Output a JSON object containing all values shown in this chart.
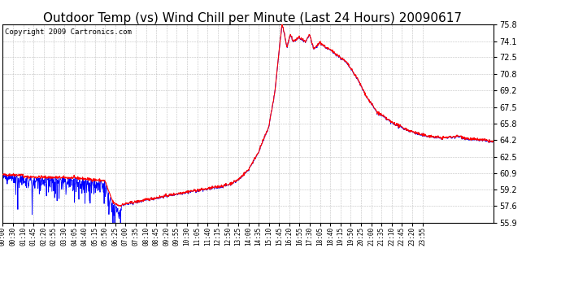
{
  "title": "Outdoor Temp (vs) Wind Chill per Minute (Last 24 Hours) 20090617",
  "copyright": "Copyright 2009 Cartronics.com",
  "background_color": "#ffffff",
  "plot_background": "#ffffff",
  "grid_color": "#c0c0c0",
  "line_color_red": "#ff0000",
  "line_color_blue": "#0000ff",
  "yticks": [
    55.9,
    57.6,
    59.2,
    60.9,
    62.5,
    64.2,
    65.8,
    67.5,
    69.2,
    70.8,
    72.5,
    74.1,
    75.8
  ],
  "xtick_labels": [
    "00:00",
    "00:30",
    "01:10",
    "01:45",
    "02:20",
    "02:55",
    "03:30",
    "04:05",
    "04:40",
    "05:15",
    "05:50",
    "06:25",
    "07:00",
    "07:35",
    "08:10",
    "08:45",
    "09:20",
    "09:55",
    "10:30",
    "11:05",
    "11:40",
    "12:15",
    "12:50",
    "13:25",
    "14:00",
    "14:35",
    "15:10",
    "15:45",
    "16:20",
    "16:55",
    "17:30",
    "18:05",
    "18:40",
    "19:15",
    "19:50",
    "20:25",
    "21:00",
    "21:35",
    "22:10",
    "22:45",
    "23:20",
    "23:55"
  ],
  "ymin": 55.9,
  "ymax": 75.8,
  "title_fontsize": 11,
  "copyright_fontsize": 6.5,
  "tick_fontsize": 7,
  "xtick_fontsize": 5.5
}
